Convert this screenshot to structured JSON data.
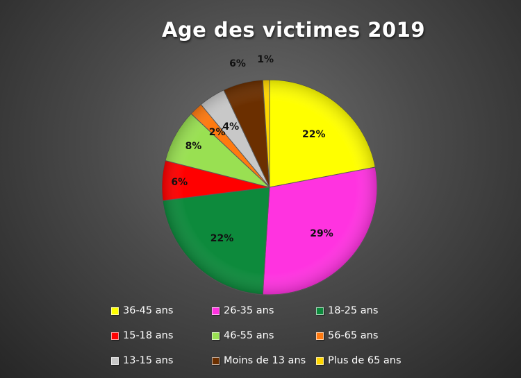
{
  "chart_data": {
    "type": "pie",
    "title": "Age des victimes 2019",
    "categories": [
      "36-45 ans",
      "26-35 ans",
      "18-25 ans",
      "15-18 ans",
      "46-55 ans",
      "56-65 ans",
      "13-15 ans",
      "Moins de 13 ans",
      "Plus de 65 ans"
    ],
    "values": [
      22,
      29,
      22,
      6,
      8,
      2,
      4,
      6,
      1
    ],
    "labels": [
      "22%",
      "29%",
      "22%",
      "6%",
      "8%",
      "2%",
      "4%",
      "6%",
      "1%"
    ],
    "colors": [
      "#ffff00",
      "#ff33e0",
      "#0d8a3c",
      "#ff0000",
      "#99e052",
      "#ff7a10",
      "#c8c8c8",
      "#6b2f00",
      "#ffd600"
    ],
    "legend_position": "bottom"
  }
}
